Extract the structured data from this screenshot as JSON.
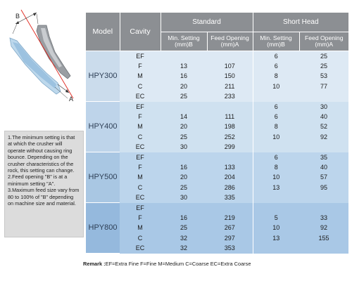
{
  "diagram": {
    "label_b": "B",
    "label_a": "A"
  },
  "notes": [
    "1.The minimum setting is that at which the crusher will operate without causing ring bounce. Depending on the crusher characteristics of the rock, this setting can change.",
    "2.Feed opening \"B\" is at a minimum setting \"A\".",
    "3.Maximum feed size vary from 80 to 100% of \"B\" depending on machine size and material."
  ],
  "table": {
    "headers": {
      "model": "Model",
      "cavity": "Cavity",
      "standard": "Standard",
      "short_head": "Short Head",
      "min_setting": "Min. Setting",
      "min_setting_unit": "(mm)B",
      "feed_opening": "Feed Opening",
      "feed_opening_unit": "(mm)A"
    },
    "models": [
      {
        "name": "HPY300",
        "rows": [
          {
            "cavity": "EF",
            "std_min": "",
            "std_feed": "",
            "sh_min": "6",
            "sh_feed": "25"
          },
          {
            "cavity": "F",
            "std_min": "13",
            "std_feed": "107",
            "sh_min": "6",
            "sh_feed": "25"
          },
          {
            "cavity": "M",
            "std_min": "16",
            "std_feed": "150",
            "sh_min": "8",
            "sh_feed": "53"
          },
          {
            "cavity": "C",
            "std_min": "20",
            "std_feed": "211",
            "sh_min": "10",
            "sh_feed": "77"
          },
          {
            "cavity": "EC",
            "std_min": "25",
            "std_feed": "233",
            "sh_min": "",
            "sh_feed": ""
          }
        ]
      },
      {
        "name": "HPY400",
        "rows": [
          {
            "cavity": "EF",
            "std_min": "",
            "std_feed": "",
            "sh_min": "6",
            "sh_feed": "30"
          },
          {
            "cavity": "F",
            "std_min": "14",
            "std_feed": "111",
            "sh_min": "6",
            "sh_feed": "40"
          },
          {
            "cavity": "M",
            "std_min": "20",
            "std_feed": "198",
            "sh_min": "8",
            "sh_feed": "52"
          },
          {
            "cavity": "C",
            "std_min": "25",
            "std_feed": "252",
            "sh_min": "10",
            "sh_feed": "92"
          },
          {
            "cavity": "EC",
            "std_min": "30",
            "std_feed": "299",
            "sh_min": "",
            "sh_feed": ""
          }
        ]
      },
      {
        "name": "HPY500",
        "rows": [
          {
            "cavity": "EF",
            "std_min": "",
            "std_feed": "",
            "sh_min": "6",
            "sh_feed": "35"
          },
          {
            "cavity": "F",
            "std_min": "16",
            "std_feed": "133",
            "sh_min": "8",
            "sh_feed": "40"
          },
          {
            "cavity": "M",
            "std_min": "20",
            "std_feed": "204",
            "sh_min": "10",
            "sh_feed": "57"
          },
          {
            "cavity": "C",
            "std_min": "25",
            "std_feed": "286",
            "sh_min": "13",
            "sh_feed": "95"
          },
          {
            "cavity": "EC",
            "std_min": "30",
            "std_feed": "335",
            "sh_min": "",
            "sh_feed": ""
          }
        ]
      },
      {
        "name": "HPY800",
        "rows": [
          {
            "cavity": "EF",
            "std_min": "",
            "std_feed": "",
            "sh_min": "",
            "sh_feed": ""
          },
          {
            "cavity": "F",
            "std_min": "16",
            "std_feed": "219",
            "sh_min": "5",
            "sh_feed": "33"
          },
          {
            "cavity": "M",
            "std_min": "25",
            "std_feed": "267",
            "sh_min": "10",
            "sh_feed": "92"
          },
          {
            "cavity": "C",
            "std_min": "32",
            "std_feed": "297",
            "sh_min": "13",
            "sh_feed": "155"
          },
          {
            "cavity": "EC",
            "std_min": "32",
            "std_feed": "353",
            "sh_min": "",
            "sh_feed": ""
          }
        ]
      }
    ]
  },
  "remark": {
    "label": "Remark :",
    "text": "EF=Extra Fine  F=Fine  M=Medium  C=Coarse  EC=Extra Coarse"
  }
}
